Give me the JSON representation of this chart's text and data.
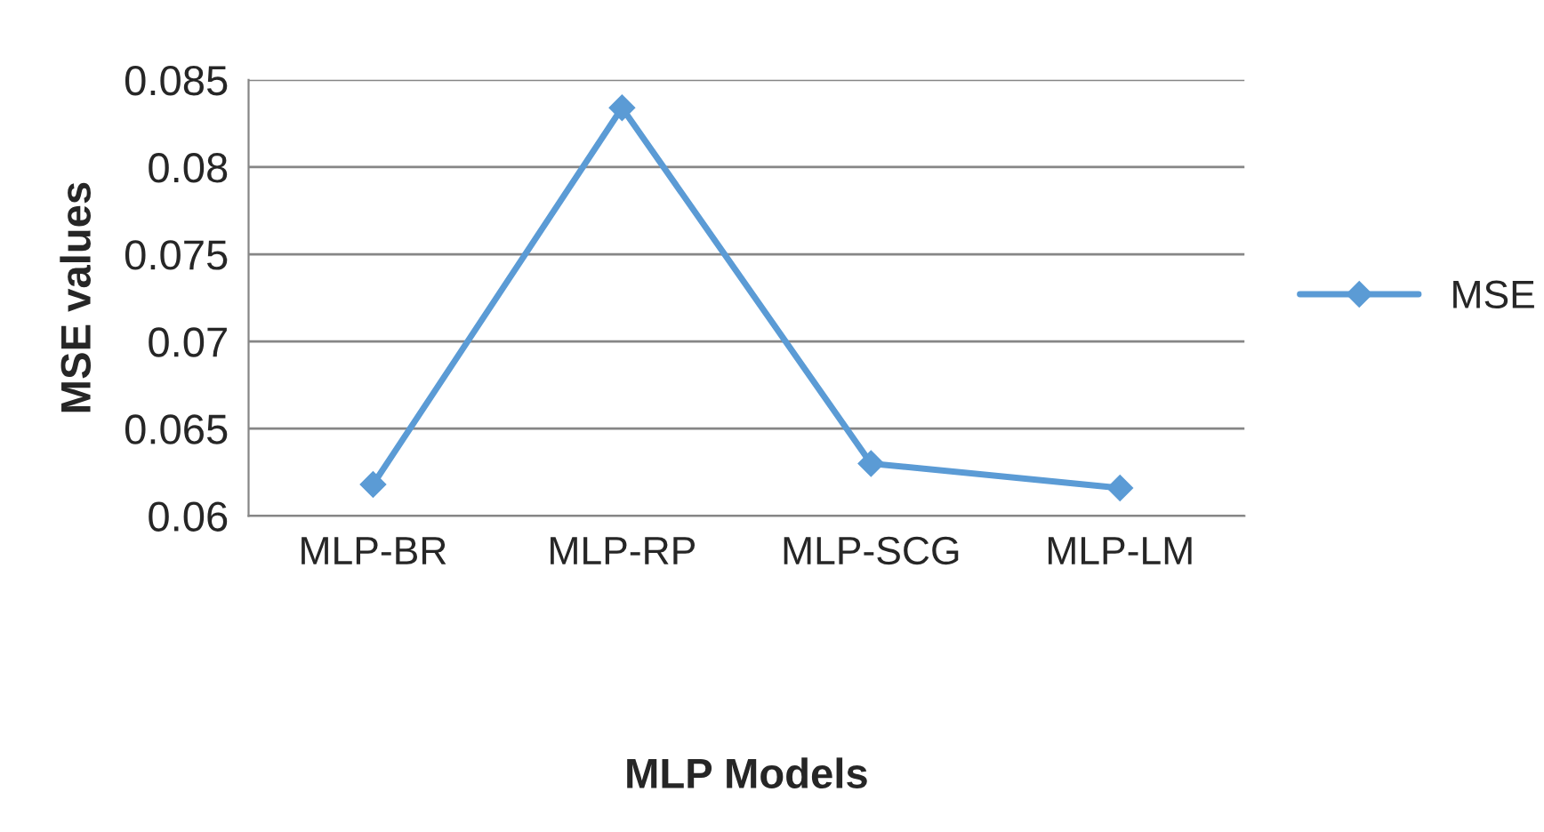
{
  "chart_data": {
    "type": "line",
    "xlabel": "MLP Models",
    "ylabel": "MSE values",
    "categories": [
      "MLP-BR",
      "MLP-RP",
      "MLP-SCG",
      "MLP-LM"
    ],
    "series": [
      {
        "name": "MSE",
        "color": "#5b9bd5",
        "values": [
          0.0618,
          0.0834,
          0.063,
          0.0616
        ]
      }
    ],
    "ylim": [
      0.06,
      0.085
    ],
    "yticks": [
      0.06,
      0.065,
      0.07,
      0.075,
      0.08,
      0.085
    ],
    "grid": "y",
    "legend": "right",
    "marker": "diamond",
    "line_style": "solid"
  }
}
